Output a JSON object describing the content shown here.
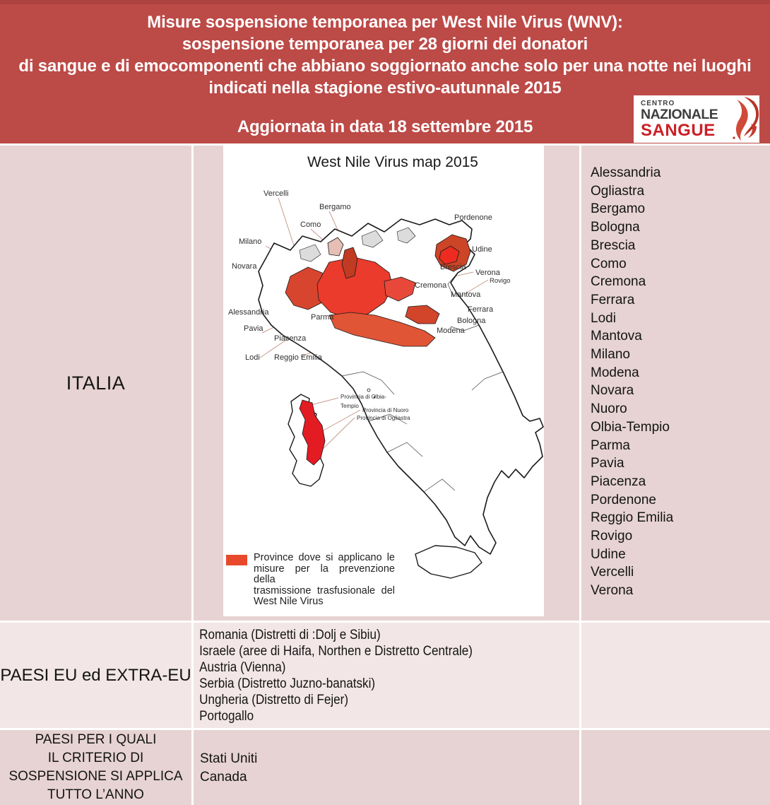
{
  "header": {
    "lines": [
      "Misure sospensione temporanea per West Nile Virus (WNV):",
      "sospensione temporanea per 28 giorni dei donatori",
      "di sangue e di emocomponenti che abbiano soggiornato anche solo per una notte nei luoghi",
      "indicati nella stagione estivo-autunnale 2015"
    ],
    "updated": "Aggiornata in data 18 settembre 2015"
  },
  "logo": {
    "centro": "CENTRO",
    "nazionale": "NAZIONALE",
    "sangue": "SANGUE"
  },
  "sections": {
    "italia": {
      "label": "ITALIA",
      "provinces": [
        "Alessandria",
        "Ogliastra",
        "Bergamo",
        "Bologna",
        "Brescia",
        "Como",
        "Cremona",
        "Ferrara",
        "Lodi",
        "Mantova",
        "Milano",
        "Modena",
        "Novara",
        "Nuoro",
        "Olbia-Tempio",
        "Parma",
        "Pavia",
        "Piacenza",
        "Pordenone",
        "Reggio Emilia",
        "Rovigo",
        "Udine",
        "Vercelli",
        "Verona"
      ]
    },
    "eu_extra_eu": {
      "label": "PAESI EU ed EXTRA-EU",
      "countries": [
        "Romania (Distretti di :Dolj e Sibiu)",
        "Israele (aree di Haifa, Northen e Distretto Centrale)",
        "Austria (Vienna)",
        "Serbia (Distretto Juzno-banatski)",
        "Ungheria (Distretto di Fejer)",
        "Portogallo"
      ]
    },
    "year_round": {
      "label_lines": [
        "PAESI PER I QUALI",
        "IL CRITERIO DI",
        "SOSPENSIONE SI APPLICA",
        "TUTTO L’ANNO"
      ],
      "countries": [
        "Stati Uniti",
        "Canada"
      ]
    }
  },
  "map": {
    "title": "West Nile Virus map 2015",
    "labels": {
      "vercelli": "Vercelli",
      "bergamo": "Bergamo",
      "como": "Como",
      "milano": "Milano",
      "novara": "Novara",
      "alessandria": "Alessandria",
      "pavia": "Pavia",
      "piacenza": "Piacenza",
      "lodi": "Lodi",
      "parma": "Parma",
      "reggio_emilia": "Reggio Emilia",
      "pordenone": "Pordenone",
      "udine": "Udine",
      "brescia": "Brescia",
      "verona": "Verona",
      "rovigo": "Rovigo",
      "cremona": "Cremona",
      "mantova": "Mantova",
      "ferrara": "Ferrara",
      "bologna": "Bologna",
      "modena": "Modena",
      "olbia_line1": "Provincia di Olbia-",
      "olbia_line2": "Tempio",
      "nuoro": "Provincia di Nuoro",
      "ogliastra": "Provincia di Ogliastra"
    },
    "legend_lines": [
      "Province dove si applicano le",
      "misure per la prevenzione della",
      "trasmissione trasfusionale del",
      "West Nile Virus"
    ]
  },
  "colors": {
    "header_bg": "#bc4a47",
    "band_dark": "#e7d3d3",
    "band_light": "#f2e6e6",
    "map_red": "#e8492c",
    "logo_red": "#cb2026"
  }
}
